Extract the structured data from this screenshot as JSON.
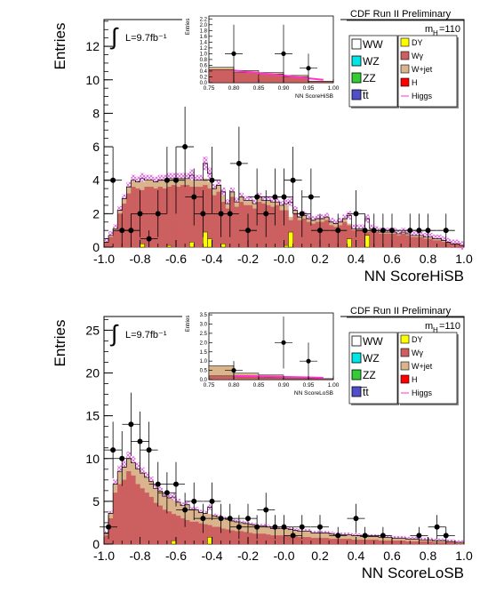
{
  "figure_label": "CDF Run II Preliminary",
  "luminosity": "L=9.7fb⁻¹",
  "mass_label": "m",
  "mass_subscript": "H",
  "mass_value": "=110",
  "integral_symbol": "∫",
  "colors": {
    "DY": "#ffff00",
    "Wgamma": "#cc5f5f",
    "Wjet": "#d9b48c",
    "H": "#ff0000",
    "Higgs": "#ff33cc",
    "WW": "#ffffff",
    "WZ": "#00e5e5",
    "ZZ": "#33cc33",
    "ttbar": "#4f4fcc",
    "band": "#e05ae0"
  },
  "legend": {
    "left": [
      {
        "label": "WW",
        "color_key": "WW"
      },
      {
        "label": "WZ",
        "color_key": "WZ"
      },
      {
        "label": "ZZ",
        "color_key": "ZZ"
      },
      {
        "label": "t̅t",
        "color_key": "ttbar"
      }
    ],
    "right": [
      {
        "label": "DY",
        "color_key": "DY"
      },
      {
        "label": "Wγ",
        "color_key": "Wgamma"
      },
      {
        "label": "W+jet",
        "color_key": "Wjet"
      },
      {
        "label": "H",
        "color_key": "H"
      },
      {
        "label": "Higgs",
        "color_key": "Higgs",
        "line": true
      }
    ]
  },
  "chart_data": [
    {
      "type": "histogram",
      "title": "",
      "xlabel": "NN ScoreHiSB",
      "ylabel": "Entries",
      "xlim": [
        -1.0,
        1.0
      ],
      "ylim": [
        0,
        13.6
      ],
      "xticks": [
        "-1.0",
        "-0.8",
        "-0.6",
        "-0.4",
        "-0.2",
        "-0.0",
        "0.2",
        "0.4",
        "0.6",
        "0.8",
        "1.0"
      ],
      "yticks": [
        0,
        2,
        4,
        6,
        8,
        10,
        12
      ],
      "bin_edges_start": -1.0,
      "bin_width": 0.025,
      "series": [
        {
          "name": "Wγ",
          "color_key": "Wgamma",
          "values": [
            0.3,
            0.6,
            1.0,
            2.0,
            2.6,
            3.2,
            3.6,
            3.5,
            3.4,
            3.6,
            3.6,
            3.5,
            3.6,
            3.5,
            3.6,
            3.7,
            3.6,
            3.7,
            3.7,
            3.6,
            3.6,
            3.6,
            3.7,
            3.5,
            3.1,
            3.3,
            2.7,
            2.3,
            3.0,
            2.4,
            2.7,
            2.5,
            2.5,
            2.3,
            2.7,
            2.6,
            2.5,
            2.4,
            2.5,
            2.2,
            2.2,
            1.6,
            2.0,
            1.6,
            1.7,
            1.5,
            1.4,
            1.5,
            1.5,
            1.6,
            1.3,
            1.2,
            1.3,
            1.5,
            1.3,
            1.0,
            1.0,
            1.0,
            0.9,
            1.0,
            0.9,
            0.8,
            0.8,
            0.8,
            0.8,
            0.7,
            0.8,
            0.7,
            0.6,
            0.6,
            0.6,
            0.5,
            0.5,
            0.4,
            0.4,
            0.3,
            0.3,
            0.2,
            0.2,
            0.1
          ]
        },
        {
          "name": "W+jet",
          "color_key": "Wjet",
          "values": [
            0.0,
            0.1,
            0.1,
            0.2,
            0.3,
            0.4,
            0.4,
            0.4,
            0.5,
            0.4,
            0.4,
            0.4,
            0.4,
            0.5,
            0.4,
            0.4,
            0.5,
            0.4,
            0.4,
            0.4,
            0.4,
            0.4,
            0.4,
            0.4,
            0.4,
            0.4,
            0.4,
            0.3,
            0.3,
            0.3,
            0.3,
            0.3,
            0.3,
            0.3,
            0.3,
            0.2,
            0.3,
            0.3,
            0.2,
            0.3,
            0.3,
            0.2,
            0.2,
            0.2,
            0.2,
            0.2,
            0.2,
            0.2,
            0.2,
            0.2,
            0.2,
            0.2,
            0.2,
            0.2,
            0.1,
            0.1,
            0.1,
            0.1,
            0.1,
            0.1,
            0.1,
            0.1,
            0.1,
            0.1,
            0.1,
            0.1,
            0.1,
            0.1,
            0.1,
            0.1,
            0.1,
            0.1,
            0.1,
            0.1,
            0.1,
            0.1,
            0.0,
            0.0,
            0.0,
            0.0
          ]
        },
        {
          "name": "DY",
          "color_key": "DY",
          "values": [
            0,
            0,
            0,
            0,
            0,
            0,
            0,
            0,
            0.2,
            0,
            0,
            0,
            0,
            0,
            0.1,
            0,
            0,
            0,
            0,
            0.3,
            0,
            0,
            0.9,
            0.5,
            0,
            0,
            0.2,
            0,
            0,
            0,
            0,
            0,
            0,
            0,
            0,
            0,
            0,
            0,
            0,
            0,
            0.1,
            0.9,
            0,
            0,
            0,
            0,
            0,
            0,
            0,
            0,
            0,
            0,
            0,
            0,
            0.5,
            0,
            0,
            0,
            0.7,
            0,
            0,
            0,
            0,
            0,
            0,
            0,
            0,
            0,
            0,
            0,
            0,
            0,
            0,
            0,
            0,
            0,
            0,
            0,
            0,
            0
          ]
        }
      ],
      "data_points": [
        {
          "x": -0.95,
          "y": 4,
          "err": 2.0
        },
        {
          "x": -0.9,
          "y": 1,
          "err": 1.0
        },
        {
          "x": -0.85,
          "y": 1,
          "err": 1.0
        },
        {
          "x": -0.8,
          "y": 2,
          "err": 1.4
        },
        {
          "x": -0.75,
          "y": 0.5,
          "err": 0.5
        },
        {
          "x": -0.7,
          "y": 2,
          "err": 1.4
        },
        {
          "x": -0.65,
          "y": 4,
          "err": 2.0
        },
        {
          "x": -0.6,
          "y": 4,
          "err": 2.0
        },
        {
          "x": -0.55,
          "y": 6,
          "err": 2.4
        },
        {
          "x": -0.5,
          "y": 3,
          "err": 1.7
        },
        {
          "x": -0.45,
          "y": 2,
          "err": 1.4
        },
        {
          "x": -0.4,
          "y": 4,
          "err": 2.0
        },
        {
          "x": -0.35,
          "y": 2,
          "err": 1.4
        },
        {
          "x": -0.3,
          "y": 2,
          "err": 1.4
        },
        {
          "x": -0.25,
          "y": 5,
          "err": 2.2
        },
        {
          "x": -0.2,
          "y": 1,
          "err": 1.0
        },
        {
          "x": -0.15,
          "y": 3,
          "err": 1.7
        },
        {
          "x": -0.1,
          "y": 2,
          "err": 1.4
        },
        {
          "x": -0.05,
          "y": 3,
          "err": 1.7
        },
        {
          "x": 0.0,
          "y": 3,
          "err": 1.7
        },
        {
          "x": 0.05,
          "y": 4,
          "err": 2.0
        },
        {
          "x": 0.1,
          "y": 2,
          "err": 1.4
        },
        {
          "x": 0.15,
          "y": 3,
          "err": 1.7
        },
        {
          "x": 0.2,
          "y": 1,
          "err": 1.0
        },
        {
          "x": 0.3,
          "y": 1,
          "err": 1.0
        },
        {
          "x": 0.4,
          "y": 2,
          "err": 1.4
        },
        {
          "x": 0.45,
          "y": 1,
          "err": 1.0
        },
        {
          "x": 0.5,
          "y": 1,
          "err": 1.0
        },
        {
          "x": 0.55,
          "y": 1,
          "err": 1.0
        },
        {
          "x": 0.6,
          "y": 1,
          "err": 1.0
        },
        {
          "x": 0.7,
          "y": 1,
          "err": 1.0
        },
        {
          "x": 0.75,
          "y": 1,
          "err": 1.0
        },
        {
          "x": 0.8,
          "y": 1,
          "err": 1.0
        },
        {
          "x": 0.9,
          "y": 1,
          "err": 1.0
        }
      ],
      "inset": {
        "xlabel": "NN ScoreHiSB",
        "ylabel": "Entries",
        "xlim": [
          0.75,
          1.0
        ],
        "ylim": [
          0,
          2.3
        ],
        "xticks": [
          "0.75",
          "0.80",
          "0.85",
          "0.90",
          "0.95",
          "1.00"
        ],
        "yticks": [
          "0.0",
          "0.2",
          "0.4",
          "0.6",
          "0.8",
          "1.0",
          "1.2",
          "1.4",
          "1.6",
          "1.8",
          "2.0",
          "2.2"
        ],
        "bins": [
          0.775,
          0.825,
          0.875,
          0.925,
          0.975
        ],
        "bin_width": 0.05,
        "stack_wgamma": [
          0.45,
          0.35,
          0.3,
          0.2,
          0.05
        ],
        "stack_wjet": [
          0.08,
          0.07,
          0.05,
          0.05,
          0.0
        ],
        "higgs_line": [
          [
            0.8,
            0.42
          ],
          [
            0.85,
            0.33
          ],
          [
            0.9,
            0.25
          ],
          [
            0.95,
            0.15
          ],
          [
            0.98,
            0.1
          ]
        ],
        "data_points": [
          {
            "x": 0.8,
            "y": 1,
            "err": 1.0
          },
          {
            "x": 0.9,
            "y": 1,
            "err": 1.0
          },
          {
            "x": 0.95,
            "y": 0.5,
            "err": 0.5
          }
        ]
      }
    },
    {
      "type": "histogram",
      "title": "",
      "xlabel": "NN ScoreLoSB",
      "ylabel": "Entries",
      "xlim": [
        -1.0,
        1.0
      ],
      "ylim": [
        0,
        26.6
      ],
      "xticks": [
        "-1.0",
        "-0.8",
        "-0.6",
        "-0.4",
        "-0.2",
        "-0.0",
        "0.2",
        "0.4",
        "0.6",
        "0.8",
        "1.0"
      ],
      "yticks": [
        0,
        5,
        10,
        15,
        20,
        25
      ],
      "bin_edges_start": -1.0,
      "bin_width": 0.025,
      "series": [
        {
          "name": "Wγ",
          "color_key": "Wgamma",
          "values": [
            1.0,
            3.0,
            6.0,
            7.0,
            7.5,
            8.5,
            8.0,
            7.0,
            6.5,
            6.0,
            5.5,
            4.8,
            4.5,
            4.0,
            3.8,
            3.5,
            3.3,
            3.0,
            2.8,
            2.6,
            2.6,
            2.4,
            2.3,
            2.2,
            2.0,
            2.0,
            1.8,
            1.7,
            1.6,
            1.5,
            1.5,
            1.4,
            1.3,
            1.2,
            1.2,
            1.2,
            1.1,
            1.0,
            1.0,
            1.0,
            1.0,
            0.9,
            0.9,
            0.8,
            0.8,
            0.8,
            0.7,
            0.7,
            0.7,
            0.7,
            0.6,
            0.6,
            0.6,
            0.6,
            0.6,
            0.5,
            0.5,
            0.5,
            0.5,
            0.5,
            0.5,
            0.4,
            0.4,
            0.4,
            0.4,
            0.4,
            0.4,
            0.3,
            0.3,
            0.3,
            0.3,
            0.3,
            0.3,
            0.2,
            0.2,
            0.2,
            0.2,
            0.2,
            0.1,
            0.1
          ]
        },
        {
          "name": "W+jet",
          "color_key": "Wjet",
          "values": [
            0.3,
            0.6,
            1.0,
            1.5,
            1.5,
            1.5,
            1.5,
            1.8,
            1.8,
            1.8,
            1.8,
            1.7,
            1.7,
            1.6,
            1.6,
            1.6,
            1.6,
            1.5,
            1.8,
            1.4,
            1.4,
            1.3,
            1.3,
            1.3,
            1.3,
            1.2,
            1.2,
            1.2,
            1.1,
            1.1,
            1.0,
            1.0,
            1.0,
            1.0,
            0.9,
            0.9,
            0.9,
            0.8,
            0.8,
            0.8,
            0.8,
            0.8,
            0.7,
            0.7,
            0.7,
            0.7,
            0.6,
            0.6,
            0.6,
            0.6,
            0.6,
            0.5,
            0.5,
            0.5,
            0.5,
            0.5,
            0.5,
            0.4,
            0.4,
            0.4,
            0.4,
            0.4,
            0.4,
            0.4,
            0.3,
            0.3,
            0.3,
            0.3,
            0.3,
            0.3,
            0.2,
            0.2,
            0.2,
            0.2,
            0.2,
            0.2,
            0.1,
            0.1,
            0.1,
            0.1
          ]
        },
        {
          "name": "DY",
          "color_key": "DY",
          "values": [
            0,
            0,
            0,
            0,
            0,
            0,
            0,
            0,
            0,
            0,
            0,
            0,
            0,
            0,
            0,
            0.4,
            0,
            0,
            0,
            0,
            0,
            0,
            0,
            0.8,
            0,
            0,
            0,
            0,
            0,
            0,
            0,
            0,
            0,
            0,
            0,
            0,
            0,
            0,
            0,
            0,
            0,
            0,
            0,
            0,
            0,
            0,
            0,
            0,
            0,
            0,
            0,
            0,
            0,
            0,
            0,
            0,
            0,
            0,
            0,
            0,
            0,
            0,
            0,
            0,
            0,
            0,
            0,
            0,
            0,
            0,
            0,
            0,
            0,
            0,
            0,
            0,
            0,
            0,
            0,
            0
          ]
        }
      ],
      "data_points": [
        {
          "x": -0.975,
          "y": 2,
          "err": 1.4
        },
        {
          "x": -0.95,
          "y": 11,
          "err": 3.3
        },
        {
          "x": -0.9,
          "y": 10,
          "err": 3.2
        },
        {
          "x": -0.85,
          "y": 14,
          "err": 3.7
        },
        {
          "x": -0.8,
          "y": 12,
          "err": 3.5
        },
        {
          "x": -0.75,
          "y": 11,
          "err": 3.3
        },
        {
          "x": -0.7,
          "y": 7,
          "err": 2.6
        },
        {
          "x": -0.65,
          "y": 6,
          "err": 2.4
        },
        {
          "x": -0.6,
          "y": 7,
          "err": 2.6
        },
        {
          "x": -0.55,
          "y": 4,
          "err": 2.0
        },
        {
          "x": -0.5,
          "y": 5,
          "err": 2.2
        },
        {
          "x": -0.45,
          "y": 3,
          "err": 1.7
        },
        {
          "x": -0.4,
          "y": 5,
          "err": 2.2
        },
        {
          "x": -0.35,
          "y": 3,
          "err": 1.7
        },
        {
          "x": -0.3,
          "y": 3,
          "err": 1.7
        },
        {
          "x": -0.25,
          "y": 2,
          "err": 1.4
        },
        {
          "x": -0.2,
          "y": 3,
          "err": 1.7
        },
        {
          "x": -0.15,
          "y": 2,
          "err": 1.4
        },
        {
          "x": -0.1,
          "y": 4,
          "err": 2.0
        },
        {
          "x": -0.05,
          "y": 2,
          "err": 1.4
        },
        {
          "x": 0.0,
          "y": 2,
          "err": 1.4
        },
        {
          "x": 0.05,
          "y": 1,
          "err": 1.0
        },
        {
          "x": 0.1,
          "y": 2,
          "err": 1.4
        },
        {
          "x": 0.2,
          "y": 2,
          "err": 1.4
        },
        {
          "x": 0.3,
          "y": 1,
          "err": 1.0
        },
        {
          "x": 0.4,
          "y": 3,
          "err": 1.7
        },
        {
          "x": 0.45,
          "y": 1,
          "err": 1.0
        },
        {
          "x": 0.55,
          "y": 1,
          "err": 1.0
        },
        {
          "x": 0.75,
          "y": 1,
          "err": 1.0
        },
        {
          "x": 0.85,
          "y": 2,
          "err": 1.4
        },
        {
          "x": 0.9,
          "y": 1,
          "err": 1.0
        }
      ],
      "inset": {
        "xlabel": "NN ScoreLoSB",
        "ylabel": "Entries",
        "xlim": [
          0.75,
          1.0
        ],
        "ylim": [
          0,
          3.6
        ],
        "xticks": [
          "0.75",
          "0.80",
          "0.85",
          "0.90",
          "0.95",
          "1.00"
        ],
        "yticks": [
          "0.0",
          "0.5",
          "1.0",
          "1.5",
          "2.0",
          "2.5",
          "3.0",
          "3.5"
        ],
        "bins": [
          0.775,
          0.825,
          0.875,
          0.925,
          0.975
        ],
        "bin_width": 0.05,
        "stack_wgamma": [
          0.2,
          0.15,
          0.1,
          0.05,
          0.05
        ],
        "stack_wjet": [
          0.55,
          0.2,
          0.15,
          0.05,
          0.0
        ],
        "higgs_line": [
          [
            0.8,
            0.2
          ],
          [
            0.85,
            0.18
          ],
          [
            0.9,
            0.15
          ],
          [
            0.95,
            0.12
          ],
          [
            0.98,
            0.1
          ]
        ],
        "data_points": [
          {
            "x": 0.8,
            "y": 0.5,
            "err": 0.5
          },
          {
            "x": 0.9,
            "y": 2,
            "err": 1.4
          },
          {
            "x": 0.95,
            "y": 1,
            "err": 1.0
          }
        ]
      }
    }
  ]
}
